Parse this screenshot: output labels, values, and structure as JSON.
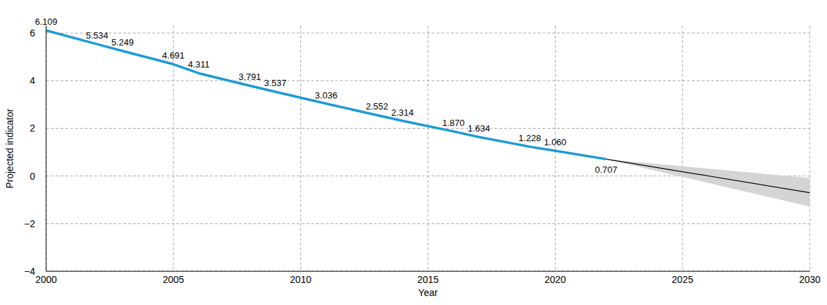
{
  "chart_data": {
    "type": "line",
    "x_label": "Year",
    "y_label": "Projected indicator",
    "xlim": [
      2000,
      2030
    ],
    "xticks": [
      2000,
      2005,
      2010,
      2015,
      2020,
      2025,
      2030
    ],
    "ylim": [
      -4,
      6.3
    ],
    "yticks": [
      {
        "value": -4,
        "label": "−4"
      },
      {
        "value": -2,
        "label": "−2"
      },
      0,
      2,
      4,
      6
    ],
    "grid": true,
    "series": [
      {
        "type": "line",
        "color": "#1a9ad6",
        "line_style": "solid",
        "data_labels": true,
        "x": [
          2000,
          2002,
          2003,
          2005,
          2006,
          2008,
          2009,
          2011,
          2013,
          2014,
          2016,
          2017,
          2019,
          2020,
          2022
        ],
        "values": [
          6.109,
          5.534,
          5.249,
          4.691,
          4.311,
          3.791,
          3.537,
          3.036,
          2.552,
          2.314,
          1.87,
          1.634,
          1.228,
          1.06,
          0.707
        ],
        "value_labels": [
          "6.109",
          "5.534",
          "5.249",
          "4.691",
          "4.311",
          "3.791",
          "3.537",
          "3.036",
          "2.552",
          "2.314",
          "1.870",
          "1.634",
          "1.228",
          "1.060",
          "0.707"
        ]
      },
      {
        "type": "line",
        "color": "#000000",
        "line_style": "solid",
        "data_labels": false,
        "x": [
          2022,
          2030
        ],
        "values": [
          0.707,
          -0.7
        ],
        "lower": [
          0.707,
          -1.28
        ],
        "upper": [
          0.707,
          -0.09
        ]
      }
    ]
  }
}
